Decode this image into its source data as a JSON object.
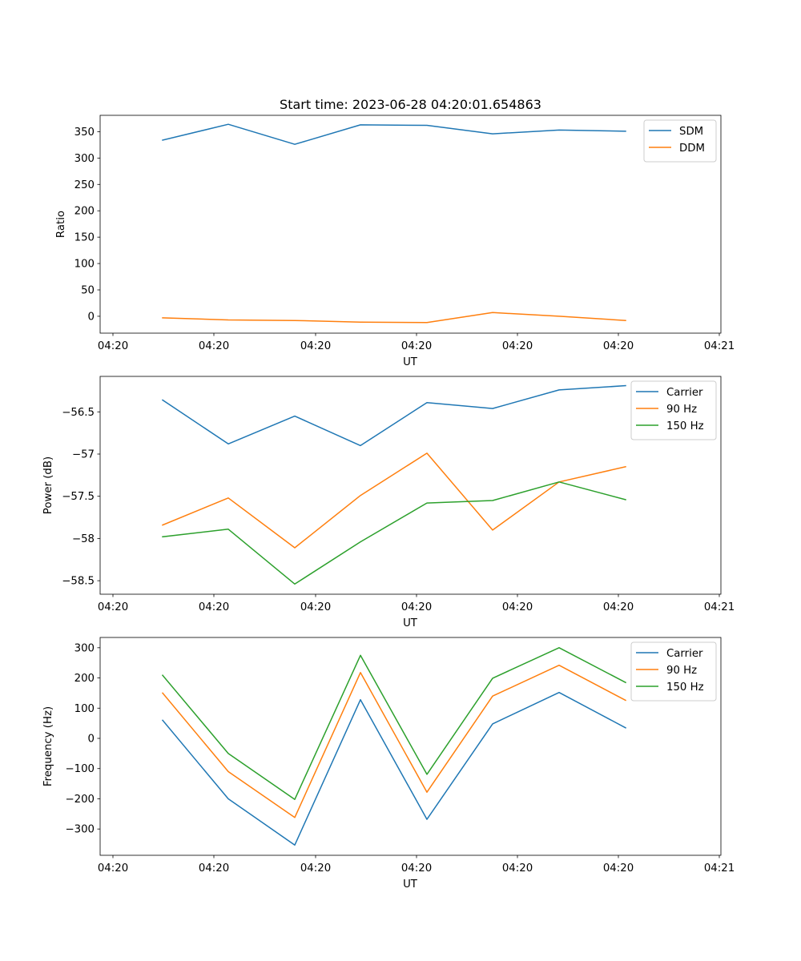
{
  "chart_data": [
    {
      "type": "line",
      "title": "Start time: 2023-06-28 04:20:01.654863",
      "xlabel": "UT",
      "ylabel": "Ratio",
      "x_tick_labels": [
        "04:20",
        "04:20",
        "04:20",
        "04:20",
        "04:20",
        "04:20",
        "04:21"
      ],
      "y_ticks": [
        0,
        50,
        100,
        150,
        200,
        250,
        300,
        350
      ],
      "ylim": [
        -32,
        381
      ],
      "legend_position": "upper right",
      "grid": false,
      "series": [
        {
          "name": "SDM",
          "color": "#1f77b4",
          "values": [
            334,
            364,
            326,
            363,
            362,
            346,
            353,
            351
          ]
        },
        {
          "name": "DDM",
          "color": "#ff7f0e",
          "values": [
            -3,
            -7,
            -8,
            -11,
            -12,
            7,
            0,
            -8
          ]
        }
      ]
    },
    {
      "type": "line",
      "title": "",
      "xlabel": "UT",
      "ylabel": "Power (dB)",
      "x_tick_labels": [
        "04:20",
        "04:20",
        "04:20",
        "04:20",
        "04:20",
        "04:20",
        "04:21"
      ],
      "y_ticks": [
        -58.5,
        -58.0,
        -57.5,
        -57.0,
        -56.5
      ],
      "ylim": [
        -58.66,
        -56.08
      ],
      "legend_position": "upper right",
      "grid": false,
      "series": [
        {
          "name": "Carrier",
          "color": "#1f77b4",
          "values": [
            -56.36,
            -56.88,
            -56.55,
            -56.9,
            -56.39,
            -56.46,
            -56.24,
            -56.19
          ]
        },
        {
          "name": "90 Hz",
          "color": "#ff7f0e",
          "values": [
            -57.84,
            -57.52,
            -58.11,
            -57.49,
            -56.99,
            -57.9,
            -57.33,
            -57.15
          ]
        },
        {
          "name": "150 Hz",
          "color": "#2ca02c",
          "values": [
            -57.98,
            -57.89,
            -58.54,
            -58.04,
            -57.58,
            -57.55,
            -57.33,
            -57.54
          ]
        }
      ]
    },
    {
      "type": "line",
      "title": "",
      "xlabel": "UT",
      "ylabel": "Frequency (Hz)",
      "x_tick_labels": [
        "04:20",
        "04:20",
        "04:20",
        "04:20",
        "04:20",
        "04:20",
        "04:21"
      ],
      "y_ticks": [
        -300,
        -200,
        -100,
        0,
        100,
        200,
        300
      ],
      "ylim": [
        -387,
        334
      ],
      "legend_position": "upper right",
      "grid": false,
      "series": [
        {
          "name": "Carrier",
          "color": "#1f77b4",
          "values": [
            60,
            -200,
            -353,
            128,
            -268,
            48,
            152,
            35
          ]
        },
        {
          "name": "90 Hz",
          "color": "#ff7f0e",
          "values": [
            150,
            -110,
            -262,
            218,
            -178,
            140,
            242,
            126
          ]
        },
        {
          "name": "150 Hz",
          "color": "#2ca02c",
          "values": [
            209,
            -50,
            -202,
            275,
            -119,
            199,
            300,
            185
          ]
        }
      ]
    }
  ]
}
